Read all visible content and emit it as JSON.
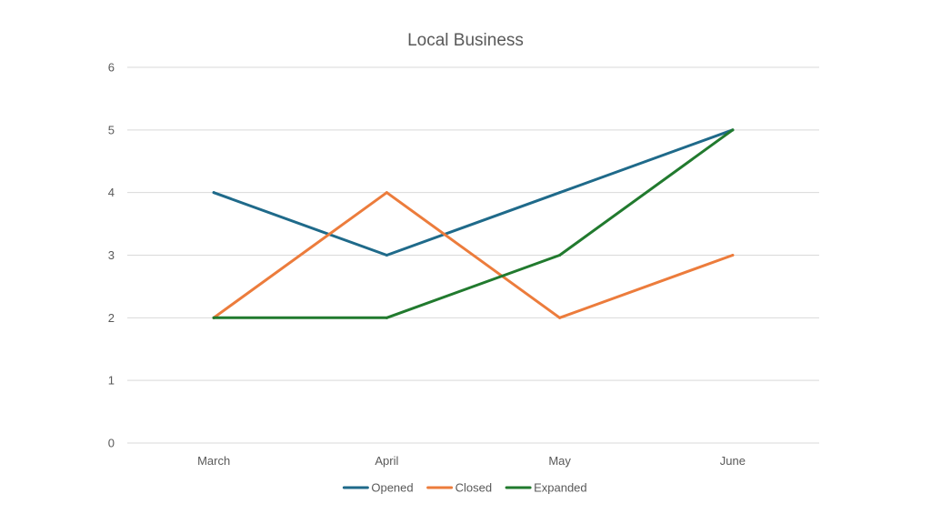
{
  "chart_data": {
    "type": "line",
    "title": "Local Business",
    "xlabel": "",
    "ylabel": "",
    "categories": [
      "March",
      "April",
      "May",
      "June"
    ],
    "ylim": [
      0,
      6
    ],
    "yticks": [
      "0",
      "1",
      "2",
      "3",
      "4",
      "5",
      "6"
    ],
    "grid": true,
    "legend_position": "bottom",
    "series": [
      {
        "name": "Opened",
        "values": [
          4,
          3,
          4,
          5
        ],
        "color": "#1f6a8a"
      },
      {
        "name": "Closed",
        "values": [
          2,
          4,
          2,
          3
        ],
        "color": "#ec7c3c"
      },
      {
        "name": "Expanded",
        "values": [
          2,
          2,
          3,
          5
        ],
        "color": "#217a2e"
      }
    ]
  }
}
